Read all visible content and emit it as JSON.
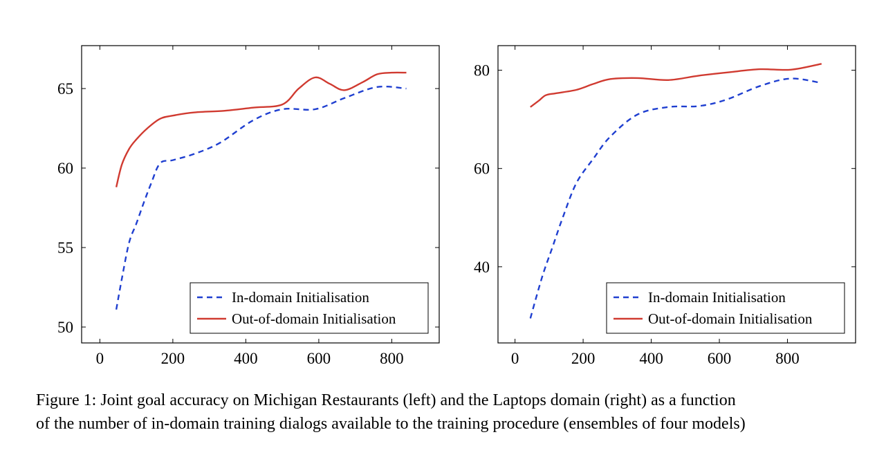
{
  "chart_data": [
    {
      "type": "line",
      "xlim": [
        -50,
        930
      ],
      "ylim": [
        49,
        67.7
      ],
      "xticks": [
        0,
        200,
        400,
        600,
        800
      ],
      "yticks": [
        50,
        55,
        60,
        65
      ],
      "grid": false,
      "legend_position": "bottom-right",
      "series": [
        {
          "name": "In-domain Initialisation",
          "style": "dashed",
          "color": "#1f3fd0",
          "x": [
            45,
            60,
            80,
            100,
            120,
            140,
            165,
            200,
            260,
            330,
            420,
            500,
            590,
            670,
            760,
            840
          ],
          "y": [
            51.1,
            53.0,
            55.3,
            56.5,
            57.8,
            59.0,
            60.3,
            60.5,
            60.9,
            61.6,
            63.0,
            63.7,
            63.7,
            64.4,
            65.1,
            65.0
          ]
        },
        {
          "name": "Out-of-domain Initialisation",
          "style": "solid",
          "color": "#d03a30",
          "x": [
            45,
            60,
            80,
            100,
            130,
            165,
            200,
            260,
            340,
            420,
            500,
            545,
            590,
            630,
            670,
            720,
            760,
            800,
            840
          ],
          "y": [
            58.8,
            60.2,
            61.2,
            61.8,
            62.5,
            63.1,
            63.3,
            63.5,
            63.6,
            63.8,
            64.0,
            65.0,
            65.7,
            65.3,
            64.9,
            65.4,
            65.9,
            66.0,
            66.0
          ]
        }
      ]
    },
    {
      "type": "line",
      "xlim": [
        -50,
        1000
      ],
      "ylim": [
        24.5,
        85
      ],
      "xticks": [
        0,
        200,
        400,
        600,
        800
      ],
      "yticks": [
        40,
        60,
        80
      ],
      "grid": false,
      "legend_position": "bottom-right",
      "series": [
        {
          "name": "In-domain Initialisation",
          "style": "dashed",
          "color": "#1f3fd0",
          "x": [
            45,
            80,
            110,
            140,
            180,
            230,
            280,
            360,
            450,
            540,
            620,
            720,
            810,
            900
          ],
          "y": [
            29.5,
            38.0,
            44.0,
            50.0,
            57.0,
            62.0,
            66.5,
            71.0,
            72.5,
            72.7,
            74.0,
            76.8,
            78.3,
            77.4
          ]
        },
        {
          "name": "Out-of-domain Initialisation",
          "style": "solid",
          "color": "#d03a30",
          "x": [
            45,
            70,
            90,
            120,
            180,
            230,
            280,
            360,
            450,
            540,
            630,
            720,
            810,
            900
          ],
          "y": [
            72.5,
            73.8,
            74.9,
            75.3,
            76.0,
            77.2,
            78.2,
            78.4,
            78.0,
            78.9,
            79.6,
            80.2,
            80.1,
            81.3
          ]
        }
      ]
    }
  ],
  "caption": {
    "line1": "Figure 1: Joint goal accuracy on Michigan Restaurants (left) and the Laptops domain (right) as a function",
    "line2": "of the number of in-domain training dialogs available to the training procedure (ensembles of four models)"
  }
}
